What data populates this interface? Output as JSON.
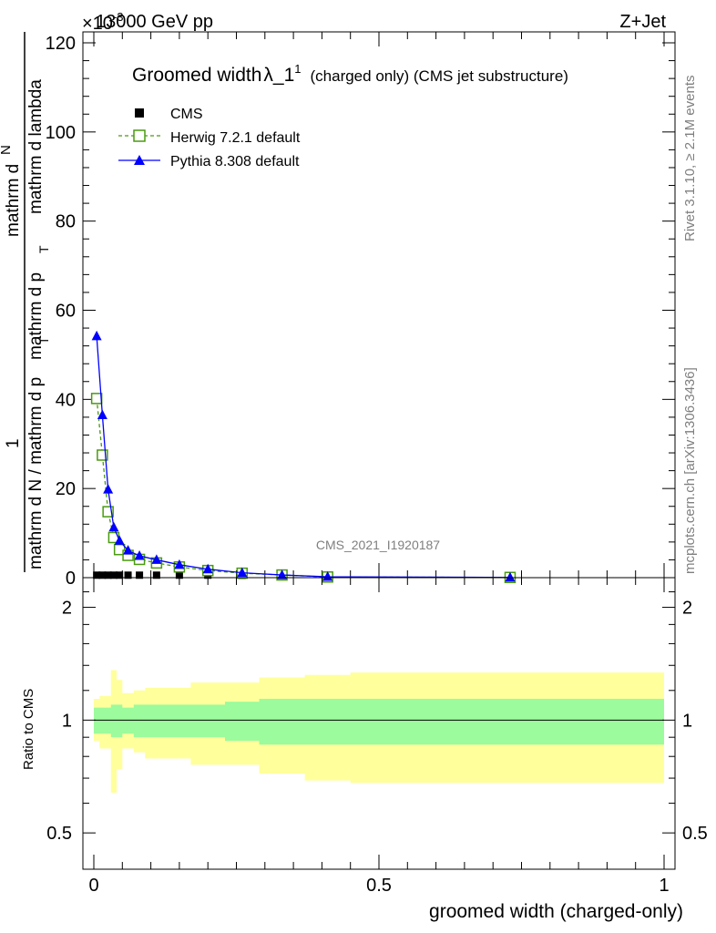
{
  "header": {
    "energy": "13000 GeV pp",
    "process": "Z+Jet",
    "multiplier": "×10",
    "multiplier_exp": "-3"
  },
  "side_labels": {
    "rivet": "Rivet 3.1.10, ≥ 2.1M events",
    "mcplots": "mcplots.cern.ch [arXiv:1306.3436]"
  },
  "watermark": "CMS_2021_I1920187",
  "chart_data": [
    {
      "type": "line",
      "title": "Groomed width λ_1¹ (charged only) (CMS jet substructure)",
      "title_main": "Groomed width",
      "title_lambda": "λ_1",
      "title_sup": "1",
      "title_rest": "(charged only) (CMS jet substructure)",
      "ylabel": {
        "one": "1",
        "top": "mathrm dN / mathrm d p_T mathrm d lambda",
        "bottom": "mathrm d N / mathrm d p_T",
        "parts": [
          "mathrm d",
          "N",
          "mathrm d p",
          "T",
          "mathrm d lambda",
          "mathrm d N / mathrm d p",
          "T"
        ]
      },
      "xlim": [
        0,
        1
      ],
      "ylim": [
        0,
        122
      ],
      "y_ticks": [
        "0",
        "20",
        "40",
        "60",
        "80",
        "100",
        "120"
      ],
      "series": [
        {
          "name": "CMS",
          "color": "#000000",
          "marker": "square",
          "x": [
            0.005,
            0.015,
            0.025,
            0.035,
            0.045,
            0.06,
            0.08,
            0.11,
            0.15,
            0.2,
            0.26,
            0.33,
            0.41,
            0.73
          ],
          "y": [
            0.15,
            0.15,
            0.15,
            0.15,
            0.15,
            0.15,
            0.15,
            0.15,
            0.15,
            0.15,
            0.1,
            0.1,
            0.05,
            0.02
          ]
        },
        {
          "name": "Herwig 7.2.1 default",
          "color": "#4a9a0f",
          "marker": "open-square",
          "x": [
            0.005,
            0.015,
            0.025,
            0.035,
            0.045,
            0.06,
            0.08,
            0.11,
            0.15,
            0.2,
            0.26,
            0.33,
            0.41,
            0.73
          ],
          "y": [
            40.2,
            27.5,
            14.8,
            9.0,
            6.3,
            5.0,
            4.1,
            3.3,
            2.4,
            1.6,
            1.0,
            0.6,
            0.15,
            0.05
          ]
        },
        {
          "name": "Pythia 8.308 default",
          "color": "#0000ff",
          "marker": "triangle",
          "x": [
            0.005,
            0.015,
            0.025,
            0.035,
            0.045,
            0.06,
            0.08,
            0.11,
            0.15,
            0.2,
            0.26,
            0.33,
            0.41,
            0.73
          ],
          "y": [
            54.2,
            36.5,
            19.8,
            11.3,
            8.3,
            6.1,
            4.9,
            4.0,
            2.9,
            1.9,
            1.1,
            0.6,
            0.2,
            0.05
          ]
        }
      ]
    },
    {
      "type": "area",
      "ylabel": "Ratio to CMS",
      "xlabel": "groomed width (charged-only)",
      "xlim": [
        0,
        1
      ],
      "ylim": [
        0.4,
        2.4
      ],
      "log_y": true,
      "x_ticks": [
        "0",
        "0.5",
        "1"
      ],
      "y_ticks": [
        "0.5",
        "1",
        "2"
      ],
      "reference": 1,
      "bins": [
        0,
        0.01,
        0.02,
        0.03,
        0.04,
        0.05,
        0.07,
        0.09,
        0.13,
        0.17,
        0.23,
        0.29,
        0.37,
        0.45,
        1.0
      ],
      "band_inner_color": "#9cfb9c",
      "band_outer_color": "#ffff9c",
      "inner_lo": [
        0.92,
        0.92,
        0.92,
        0.9,
        0.9,
        0.92,
        0.9,
        0.9,
        0.9,
        0.9,
        0.88,
        0.86,
        0.86,
        0.86
      ],
      "inner_hi": [
        1.08,
        1.08,
        1.08,
        1.1,
        1.1,
        1.08,
        1.1,
        1.1,
        1.1,
        1.1,
        1.12,
        1.14,
        1.14,
        1.14
      ],
      "outer_lo": [
        0.88,
        0.84,
        0.84,
        0.64,
        0.74,
        0.84,
        0.82,
        0.79,
        0.79,
        0.76,
        0.76,
        0.72,
        0.69,
        0.68
      ],
      "outer_hi": [
        1.14,
        1.16,
        1.16,
        1.36,
        1.28,
        1.18,
        1.2,
        1.22,
        1.22,
        1.26,
        1.26,
        1.3,
        1.32,
        1.34
      ]
    }
  ]
}
